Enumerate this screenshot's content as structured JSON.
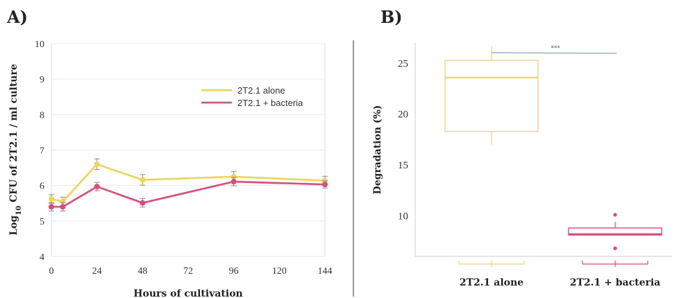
{
  "chart_data": [
    {
      "panel": "A)",
      "type": "line",
      "xlabel": "Hours of cultivation",
      "ylabel_main": "Log",
      "ylabel_sub": "10",
      "ylabel_rest": " CFU of 2T2.1 / ml culture",
      "xticks": [
        0,
        24,
        48,
        72,
        96,
        120,
        144
      ],
      "yticks": [
        4,
        5,
        6,
        7,
        8,
        9,
        10
      ],
      "xlim": [
        0,
        144
      ],
      "ylim": [
        4,
        10
      ],
      "legend_position": "top-right",
      "series": [
        {
          "name": "2T2.1 alone",
          "color": "#f2d44e",
          "x": [
            0,
            6,
            24,
            48,
            96,
            144
          ],
          "y": [
            5.62,
            5.55,
            6.6,
            6.16,
            6.25,
            6.14
          ],
          "err": [
            0.12,
            0.12,
            0.15,
            0.15,
            0.15,
            0.12
          ]
        },
        {
          "name": "2T2.1 + bacteria",
          "color": "#e8457a",
          "x": [
            0,
            6,
            24,
            48,
            96,
            144
          ],
          "y": [
            5.4,
            5.4,
            5.97,
            5.51,
            6.11,
            6.03
          ],
          "err": [
            0.12,
            0.12,
            0.12,
            0.12,
            0.12,
            0.1
          ]
        }
      ]
    },
    {
      "panel": "B)",
      "type": "box",
      "ylabel": "Degradation (%)",
      "yticks": [
        10,
        15,
        20,
        25
      ],
      "ylim": [
        6,
        27
      ],
      "significance": "***",
      "categories": [
        "2T2.1 alone",
        "2T2.1 + bacteria"
      ],
      "boxes": [
        {
          "name": "2T2.1 alone",
          "color": "#f5d27a",
          "min": 17.0,
          "q1": 18.3,
          "median": 23.6,
          "q3": 25.3,
          "max": 26.7,
          "outliers": []
        },
        {
          "name": "2T2.1 + bacteria",
          "color": "#e8457a",
          "min": 8.1,
          "q1": 8.1,
          "median": 8.2,
          "q3": 8.8,
          "max": 9.4,
          "outliers": [
            10.1,
            6.8
          ]
        }
      ]
    }
  ]
}
